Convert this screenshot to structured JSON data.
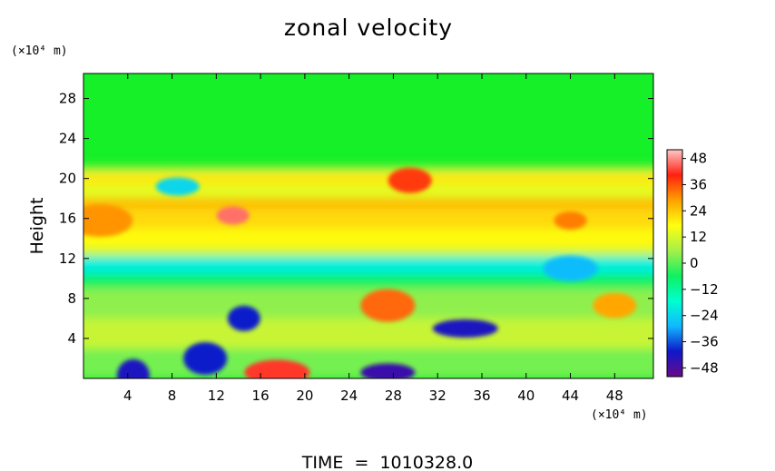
{
  "chart_data": {
    "type": "heatmap",
    "title": "zonal velocity",
    "ylabel": "Height",
    "x_unit": "(×10⁴ m)",
    "y_unit": "(×10⁴ m)",
    "xlim": [
      0,
      51.5
    ],
    "ylim": [
      0,
      30.5
    ],
    "x_ticks": [
      4,
      8,
      12,
      16,
      20,
      24,
      28,
      32,
      36,
      40,
      44,
      48
    ],
    "y_ticks": [
      4,
      8,
      12,
      16,
      20,
      24,
      28
    ],
    "colorbar": {
      "ticks": [
        48,
        36,
        24,
        12,
        0,
        -12,
        -24,
        -36,
        -48
      ],
      "tick_labels": [
        "48",
        "36",
        "24",
        "12",
        "0",
        "−12",
        "−24",
        "−36",
        "−48"
      ],
      "range": [
        -52,
        52
      ],
      "colormap": [
        "#6a0a8a",
        "#0f18c8",
        "#10b8ff",
        "#00ffd0",
        "#10f060",
        "#a6f04a",
        "#ffff10",
        "#ffa000",
        "#ff2010",
        "#ffc8c8"
      ]
    },
    "value_summary": {
      "above_21_km": 3,
      "jet_band_12_21": "mixed +10 to +48",
      "band_11": -20,
      "below_11": "mixed -48 to +48"
    },
    "features": [
      {
        "x": 13.5,
        "y": 16.3,
        "value": 46,
        "desc": "positive maximum"
      },
      {
        "x": 29.5,
        "y": 19.8,
        "value": 38
      },
      {
        "x": 27.5,
        "y": 7.3,
        "value": 34
      },
      {
        "x": 34.5,
        "y": 5.0,
        "value": -42
      },
      {
        "x": 14.5,
        "y": 6.0,
        "value": -40
      },
      {
        "x": 11.0,
        "y": 2.0,
        "value": -40
      },
      {
        "x": 27.5,
        "y": 0.6,
        "value": -46
      },
      {
        "x": 17.5,
        "y": 0.6,
        "value": 42
      },
      {
        "x": 4.5,
        "y": 0.3,
        "value": -42
      },
      {
        "x": 8.5,
        "y": 19.2,
        "value": -24
      },
      {
        "x": 44.0,
        "y": 11.0,
        "value": -28
      },
      {
        "x": 1.5,
        "y": 15.8,
        "value": 30
      },
      {
        "x": 44.0,
        "y": 15.8,
        "value": 32
      },
      {
        "x": 48.0,
        "y": 7.3,
        "value": 28
      }
    ]
  },
  "footer": {
    "time_label": "TIME  =  1010328.0"
  }
}
